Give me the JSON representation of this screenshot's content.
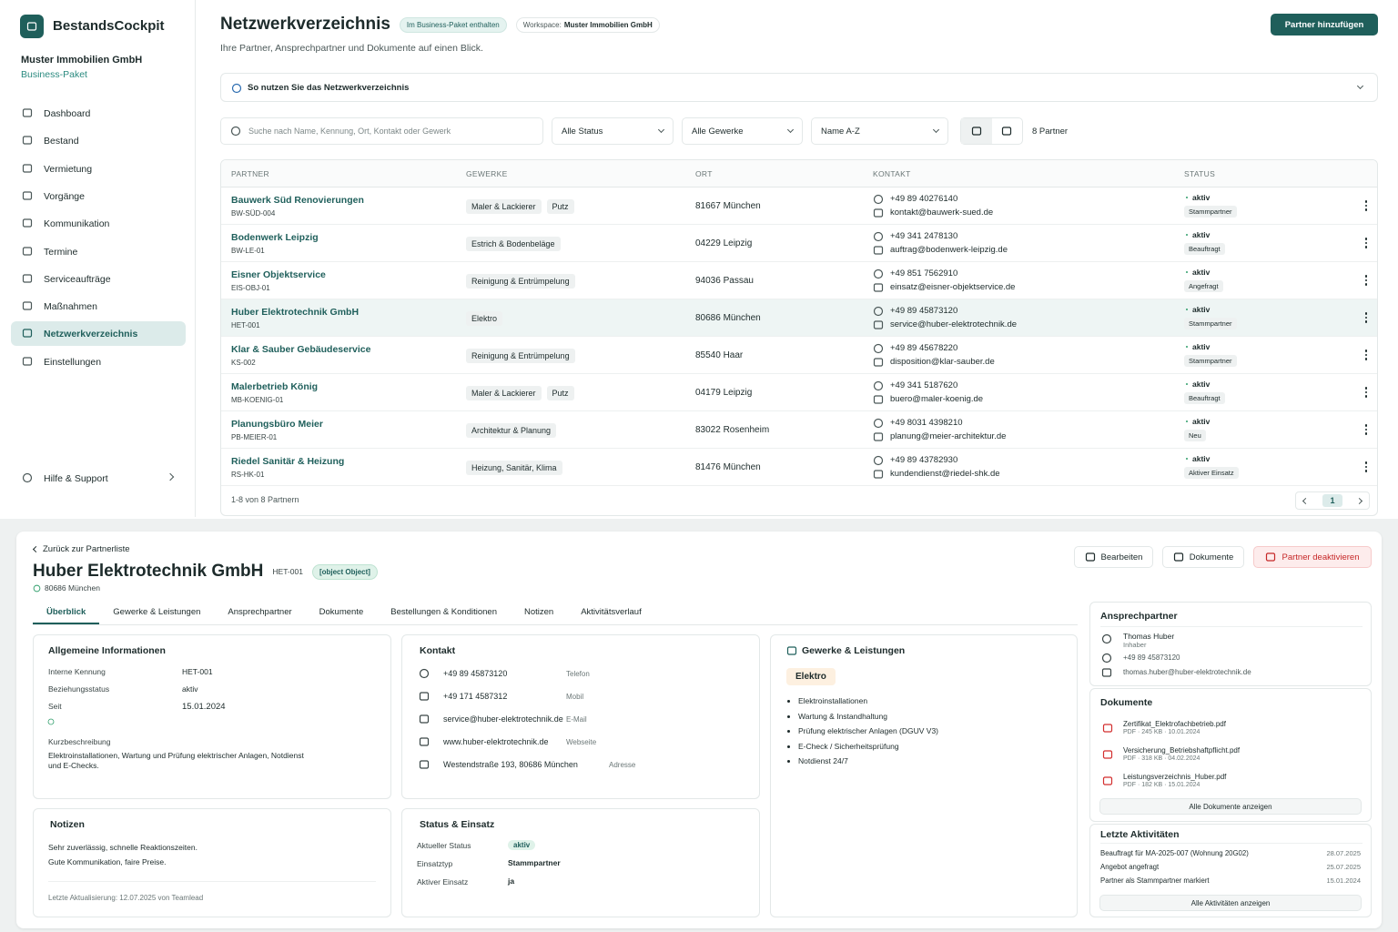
{
  "sidebar": {
    "brand": "BestandsCockpit",
    "company": "Muster Immobilien GmbH",
    "plan": "Business-Paket",
    "nav": [
      "Dashboard",
      "Bestand",
      "Vermietung",
      "Vorgänge",
      "Kommunikation",
      "Termine",
      "Serviceaufträge",
      "Maßnahmen",
      "Netzwerkverzeichnis",
      "Einstellungen"
    ],
    "help": "Hilfe & Support"
  },
  "header": {
    "title": "Netzwerkverzeichnis",
    "badge": "Im Business-Paket enthalten",
    "workspace_label": "Workspace:",
    "workspace": "Muster Immobilien GmbH",
    "subtitle": "Ihre Partner, Ansprechpartner und Dokumente auf einen Blick.",
    "add_button": "Partner hinzufügen"
  },
  "info": "So nutzen Sie das Netzwerkverzeichnis",
  "filters": {
    "search": "Suche nach Name, Kennung, Ort, Kontakt oder Gewerk",
    "status": "Alle Status",
    "trades": "Alle Gewerke",
    "sort": "Name A-Z",
    "count": "8 Partner"
  },
  "table": {
    "columns": [
      "PARTNER",
      "GEWERKE",
      "ORT",
      "KONTAKT",
      "STATUS"
    ],
    "rows": [
      {
        "name": "Bauwerk Süd Renovierungen",
        "id": "BW-SÜD-004",
        "trades": [
          "Maler & Lackierer",
          "Putz"
        ],
        "location": "81667 München",
        "phone": "+49 89 40276140",
        "email": "kontakt@bauwerk-sued.de",
        "status": "aktiv",
        "type": "Stammpartner"
      },
      {
        "name": "Bodenwerk Leipzig",
        "id": "BW-LE-01",
        "trades": [
          "Estrich & Bodenbeläge"
        ],
        "location": "04229 Leipzig",
        "phone": "+49 341 2478130",
        "email": "auftrag@bodenwerk-leipzig.de",
        "status": "aktiv",
        "type": "Beauftragt"
      },
      {
        "name": "Eisner Objektservice",
        "id": "EIS-OBJ-01",
        "trades": [
          "Reinigung & Entrümpelung"
        ],
        "location": "94036 Passau",
        "phone": "+49 851 7562910",
        "email": "einsatz@eisner-objektservice.de",
        "status": "aktiv",
        "type": "Angefragt"
      },
      {
        "name": "Huber Elektrotechnik GmbH",
        "id": "HET-001",
        "trades": [
          "Elektro"
        ],
        "location": "80686 München",
        "phone": "+49 89 45873120",
        "email": "service@huber-elektrotechnik.de",
        "status": "aktiv",
        "type": "Stammpartner"
      },
      {
        "name": "Klar & Sauber Gebäudeservice",
        "id": "KS-002",
        "trades": [
          "Reinigung & Entrümpelung"
        ],
        "location": "85540 Haar",
        "phone": "+49 89 45678220",
        "email": "disposition@klar-sauber.de",
        "status": "aktiv",
        "type": "Stammpartner"
      },
      {
        "name": "Malerbetrieb König",
        "id": "MB-KOENIG-01",
        "trades": [
          "Maler & Lackierer",
          "Putz"
        ],
        "location": "04179 Leipzig",
        "phone": "+49 341 5187620",
        "email": "buero@maler-koenig.de",
        "status": "aktiv",
        "type": "Beauftragt"
      },
      {
        "name": "Planungsbüro Meier",
        "id": "PB-MEIER-01",
        "trades": [
          "Architektur & Planung"
        ],
        "location": "83022 Rosenheim",
        "phone": "+49 8031 4398210",
        "email": "planung@meier-architektur.de",
        "status": "aktiv",
        "type": "Neu"
      },
      {
        "name": "Riedel Sanitär & Heizung",
        "id": "RS-HK-01",
        "trades": [
          "Heizung, Sanitär, Klima"
        ],
        "location": "81476 München",
        "phone": "+49 89 43782930",
        "email": "kundendienst@riedel-shk.de",
        "status": "aktiv",
        "type": "Aktiver Einsatz"
      }
    ],
    "footer": "1-8 von 8 Partnern",
    "page": "1"
  },
  "detail": {
    "back": "Zurück zur Partnerliste",
    "name": "Huber Elektrotechnik GmbH",
    "id": "HET-001",
    "status": {
      "title": "Status & Einsatz",
      "fields": [
        [
          "Aktueller Status",
          "aktiv"
        ],
        [
          "Einsatztyp",
          "Stammpartner"
        ],
        [
          "Aktiver Einsatz",
          "ja"
        ]
      ]
    },
    "location": "80686 München",
    "actions": [
      "Bearbeiten",
      "Dokumente",
      "Partner deaktivieren"
    ],
    "tabs": [
      "Überblick",
      "Gewerke & Leistungen",
      "Ansprechpartner",
      "Dokumente",
      "Bestellungen & Konditionen",
      "Notizen",
      "Aktivitätsverlauf"
    ],
    "general": {
      "title": "Allgemeine Informationen",
      "fields": [
        [
          "Interne Kennung",
          "HET-001"
        ],
        [
          "Beziehungsstatus",
          "aktiv"
        ],
        [
          "Seit",
          "15.01.2024"
        ]
      ],
      "desc_label": "Kurzbeschreibung",
      "desc": "Elektroinstallationen, Wartung und Prüfung elektrischer Anlagen, Notdienst und E-Checks."
    },
    "contact": {
      "title": "Kontakt",
      "items": [
        [
          "+49 89 45873120",
          "Telefon"
        ],
        [
          "+49 171 4587312",
          "Mobil"
        ],
        [
          "service@huber-elektrotechnik.de",
          "E-Mail"
        ],
        [
          "www.huber-elektrotechnik.de",
          "Webseite"
        ],
        [
          "Westendstraße 193, 80686 München",
          "Adresse"
        ]
      ]
    },
    "services": {
      "title": "Gewerke & Leistungen",
      "tag": "Elektro",
      "items": [
        "Elektroinstallationen",
        "Wartung & Instandhaltung",
        "Prüfung elektrischer Anlagen (DGUV V3)",
        "E-Check / Sicherheitsprüfung",
        "Notdienst 24/7"
      ]
    },
    "notes": {
      "title": "Notizen",
      "lines": [
        "Sehr zuverlässig, schnelle Reaktionszeiten.",
        "Gute Kommunikation, faire Preise."
      ],
      "updated": "Letzte Aktualisierung: 12.07.2025 von Teamlead"
    },
    "person": {
      "title": "Ansprechpartner",
      "name": "Thomas Huber",
      "role": "Inhaber",
      "phone": "+49 89 45873120",
      "email": "thomas.huber@huber-elektrotechnik.de"
    },
    "documents": {
      "title": "Dokumente",
      "files": [
        {
          "name": "Zertifikat_Elektrofachbetrieb.pdf",
          "meta": "PDF · 245 KB · 10.01.2024"
        },
        {
          "name": "Versicherung_Betriebshaftpflicht.pdf",
          "meta": "PDF · 318 KB · 04.02.2024"
        },
        {
          "name": "Leistungsverzeichnis_Huber.pdf",
          "meta": "PDF · 182 KB · 15.01.2024"
        }
      ],
      "button": "Alle Dokumente anzeigen"
    },
    "activities": {
      "title": "Letzte Aktivitäten",
      "items": [
        [
          "Beauftragt für MA-2025-007 (Wohnung 20G02)",
          "28.07.2025"
        ],
        [
          "Angebot angefragt",
          "25.07.2025"
        ],
        [
          "Partner als Stammpartner markiert",
          "15.01.2024"
        ]
      ],
      "button": "Alle Aktivitäten anzeigen"
    }
  }
}
